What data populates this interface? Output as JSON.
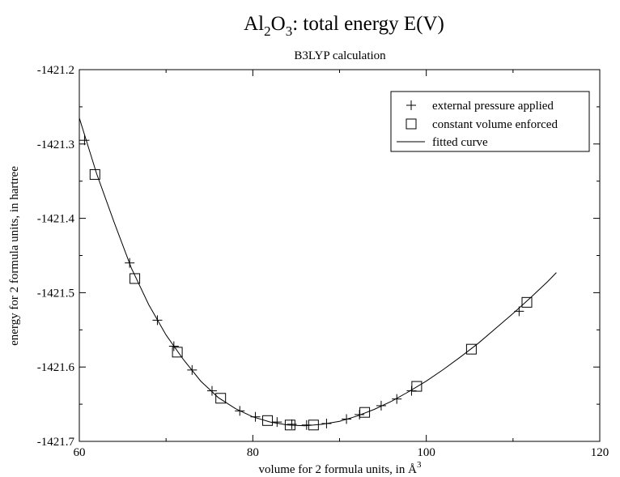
{
  "chart_data": {
    "type": "scatter",
    "title": {
      "main": "Al",
      "sub1": "2",
      "mid": "O",
      "sub2": "3",
      "rest": ": total energy E(V)"
    },
    "subtitle": "B3LYP calculation",
    "xlabel": {
      "text": "volume for 2 formula units, in ",
      "unit": "Å",
      "exp": "3"
    },
    "ylabel": "energy for 2 formula units, in hartree",
    "xlim": [
      60,
      120
    ],
    "ylim": [
      -1421.7,
      -1421.2
    ],
    "x_ticks": [
      60,
      80,
      100,
      120
    ],
    "x_tick_labels": [
      "60",
      "80",
      "100",
      "120"
    ],
    "y_ticks": [
      -1421.7,
      -1421.6,
      -1421.5,
      -1421.4,
      -1421.3,
      -1421.2
    ],
    "y_tick_labels": [
      "-1421.7",
      "-1421.6",
      "-1421.5",
      "-1421.4",
      "-1421.3",
      "-1421.2"
    ],
    "grid": false,
    "legend_position": "top-right",
    "series": [
      {
        "name": "external pressure applied",
        "marker": "plus",
        "points": [
          {
            "x": 60.6,
            "y": -1421.295
          },
          {
            "x": 65.8,
            "y": -1421.46
          },
          {
            "x": 69.0,
            "y": -1421.537
          },
          {
            "x": 70.9,
            "y": -1421.572
          },
          {
            "x": 73.0,
            "y": -1421.604
          },
          {
            "x": 75.3,
            "y": -1421.632
          },
          {
            "x": 78.5,
            "y": -1421.659
          },
          {
            "x": 80.3,
            "y": -1421.667
          },
          {
            "x": 82.8,
            "y": -1421.674
          },
          {
            "x": 84.5,
            "y": -1421.677
          },
          {
            "x": 86.2,
            "y": -1421.678
          },
          {
            "x": 88.5,
            "y": -1421.676
          },
          {
            "x": 90.8,
            "y": -1421.67
          },
          {
            "x": 92.3,
            "y": -1421.664
          },
          {
            "x": 94.8,
            "y": -1421.652
          },
          {
            "x": 96.6,
            "y": -1421.643
          },
          {
            "x": 98.3,
            "y": -1421.632
          },
          {
            "x": 110.7,
            "y": -1421.525
          }
        ]
      },
      {
        "name": "constant volume enforced",
        "marker": "square",
        "points": [
          {
            "x": 61.8,
            "y": -1421.341
          },
          {
            "x": 66.4,
            "y": -1421.481
          },
          {
            "x": 71.3,
            "y": -1421.58
          },
          {
            "x": 76.3,
            "y": -1421.642
          },
          {
            "x": 81.7,
            "y": -1421.672
          },
          {
            "x": 84.3,
            "y": -1421.678
          },
          {
            "x": 87.0,
            "y": -1421.678
          },
          {
            "x": 92.9,
            "y": -1421.661
          },
          {
            "x": 98.9,
            "y": -1421.626
          },
          {
            "x": 105.2,
            "y": -1421.576
          },
          {
            "x": 111.6,
            "y": -1421.513
          }
        ]
      },
      {
        "name": "fitted curve",
        "marker": "line",
        "points": [
          {
            "x": 60.0,
            "y": -1421.265
          },
          {
            "x": 62.0,
            "y": -1421.34
          },
          {
            "x": 64.0,
            "y": -1421.405
          },
          {
            "x": 66.0,
            "y": -1421.467
          },
          {
            "x": 68.0,
            "y": -1421.516
          },
          {
            "x": 70.0,
            "y": -1421.557
          },
          {
            "x": 72.0,
            "y": -1421.59
          },
          {
            "x": 74.0,
            "y": -1421.619
          },
          {
            "x": 76.0,
            "y": -1421.641
          },
          {
            "x": 78.0,
            "y": -1421.656
          },
          {
            "x": 80.0,
            "y": -1421.667
          },
          {
            "x": 82.0,
            "y": -1421.674
          },
          {
            "x": 84.0,
            "y": -1421.678
          },
          {
            "x": 86.0,
            "y": -1421.679
          },
          {
            "x": 88.0,
            "y": -1421.677
          },
          {
            "x": 90.0,
            "y": -1421.673
          },
          {
            "x": 92.0,
            "y": -1421.666
          },
          {
            "x": 94.0,
            "y": -1421.657
          },
          {
            "x": 96.0,
            "y": -1421.646
          },
          {
            "x": 98.0,
            "y": -1421.633
          },
          {
            "x": 100.0,
            "y": -1421.619
          },
          {
            "x": 102.0,
            "y": -1421.603
          },
          {
            "x": 104.0,
            "y": -1421.586
          },
          {
            "x": 106.0,
            "y": -1421.568
          },
          {
            "x": 108.0,
            "y": -1421.548
          },
          {
            "x": 110.0,
            "y": -1421.528
          },
          {
            "x": 112.0,
            "y": -1421.507
          },
          {
            "x": 114.0,
            "y": -1421.485
          },
          {
            "x": 115.0,
            "y": -1421.473
          }
        ]
      }
    ]
  }
}
